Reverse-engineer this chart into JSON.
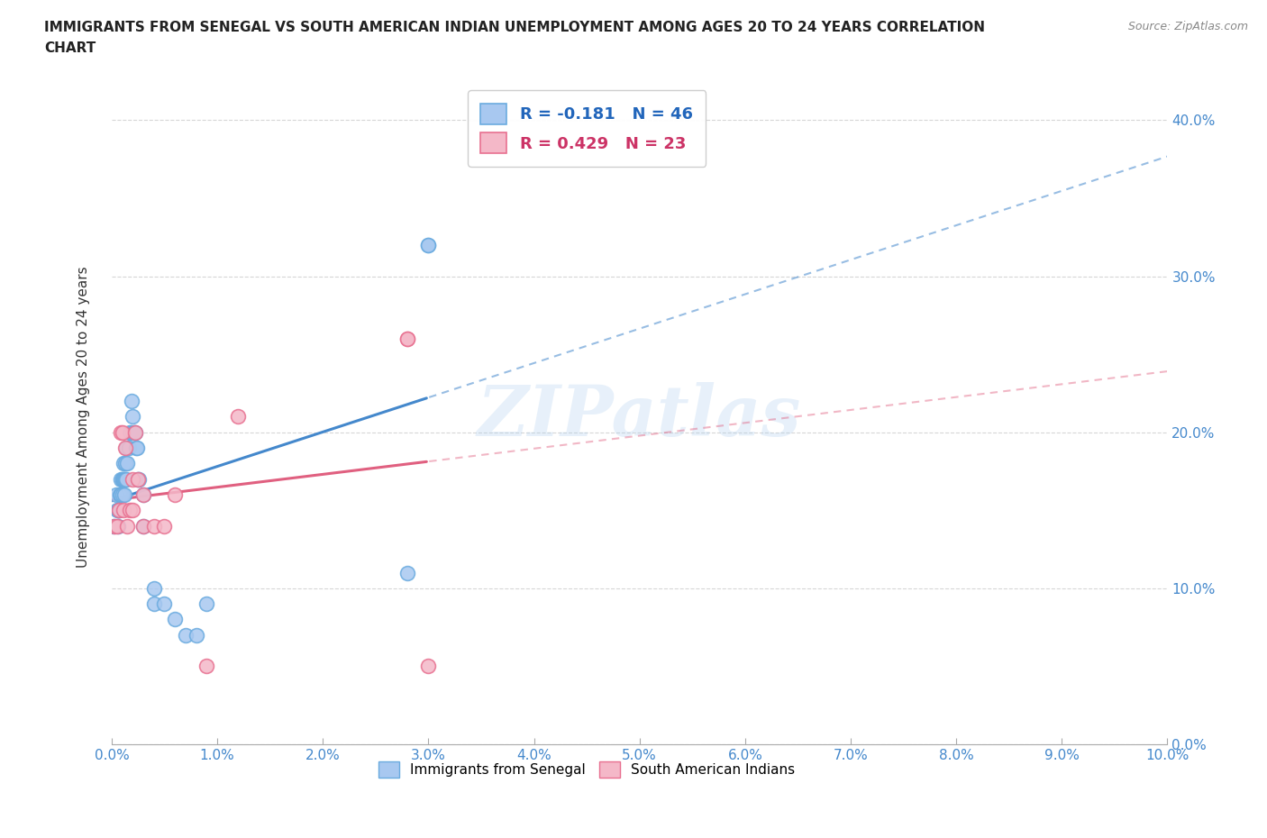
{
  "title": "IMMIGRANTS FROM SENEGAL VS SOUTH AMERICAN INDIAN UNEMPLOYMENT AMONG AGES 20 TO 24 YEARS CORRELATION\nCHART",
  "source": "Source: ZipAtlas.com",
  "ylabel": "Unemployment Among Ages 20 to 24 years",
  "watermark_text": "ZIPatlas",
  "xlim": [
    0.0,
    0.1
  ],
  "ylim": [
    0.0,
    0.42
  ],
  "senegal_x": [
    0.0002,
    0.0004,
    0.0005,
    0.0006,
    0.0006,
    0.0007,
    0.0007,
    0.0008,
    0.0009,
    0.0009,
    0.001,
    0.001,
    0.001,
    0.0011,
    0.0011,
    0.0012,
    0.0012,
    0.0013,
    0.0013,
    0.0014,
    0.0014,
    0.0015,
    0.0016,
    0.0017,
    0.0018,
    0.0019,
    0.002,
    0.002,
    0.0021,
    0.0022,
    0.0023,
    0.0024,
    0.0025,
    0.0026,
    0.003,
    0.003,
    0.004,
    0.004,
    0.005,
    0.006,
    0.007,
    0.008,
    0.009,
    0.028,
    0.03,
    0.03
  ],
  "senegal_y": [
    0.14,
    0.16,
    0.15,
    0.14,
    0.15,
    0.15,
    0.15,
    0.16,
    0.16,
    0.17,
    0.16,
    0.17,
    0.17,
    0.17,
    0.18,
    0.16,
    0.17,
    0.17,
    0.18,
    0.17,
    0.19,
    0.18,
    0.19,
    0.2,
    0.2,
    0.22,
    0.2,
    0.21,
    0.2,
    0.2,
    0.19,
    0.19,
    0.17,
    0.17,
    0.16,
    0.14,
    0.1,
    0.09,
    0.09,
    0.08,
    0.07,
    0.07,
    0.09,
    0.11,
    0.32,
    0.32
  ],
  "indian_x": [
    0.0003,
    0.0005,
    0.0007,
    0.0009,
    0.001,
    0.0011,
    0.0013,
    0.0015,
    0.0017,
    0.002,
    0.002,
    0.0022,
    0.0025,
    0.003,
    0.003,
    0.004,
    0.005,
    0.006,
    0.009,
    0.012,
    0.028,
    0.028,
    0.03
  ],
  "indian_y": [
    0.14,
    0.14,
    0.15,
    0.2,
    0.2,
    0.15,
    0.19,
    0.14,
    0.15,
    0.15,
    0.17,
    0.2,
    0.17,
    0.16,
    0.14,
    0.14,
    0.14,
    0.16,
    0.05,
    0.21,
    0.26,
    0.26,
    0.05
  ],
  "senegal_color": "#a8c8f0",
  "senegal_edge": "#6aabdf",
  "indian_color": "#f4b8c8",
  "indian_edge": "#e87090",
  "trend_color_senegal": "#4488cc",
  "trend_color_indian": "#e06080",
  "background_color": "#ffffff",
  "grid_color": "#cccccc"
}
